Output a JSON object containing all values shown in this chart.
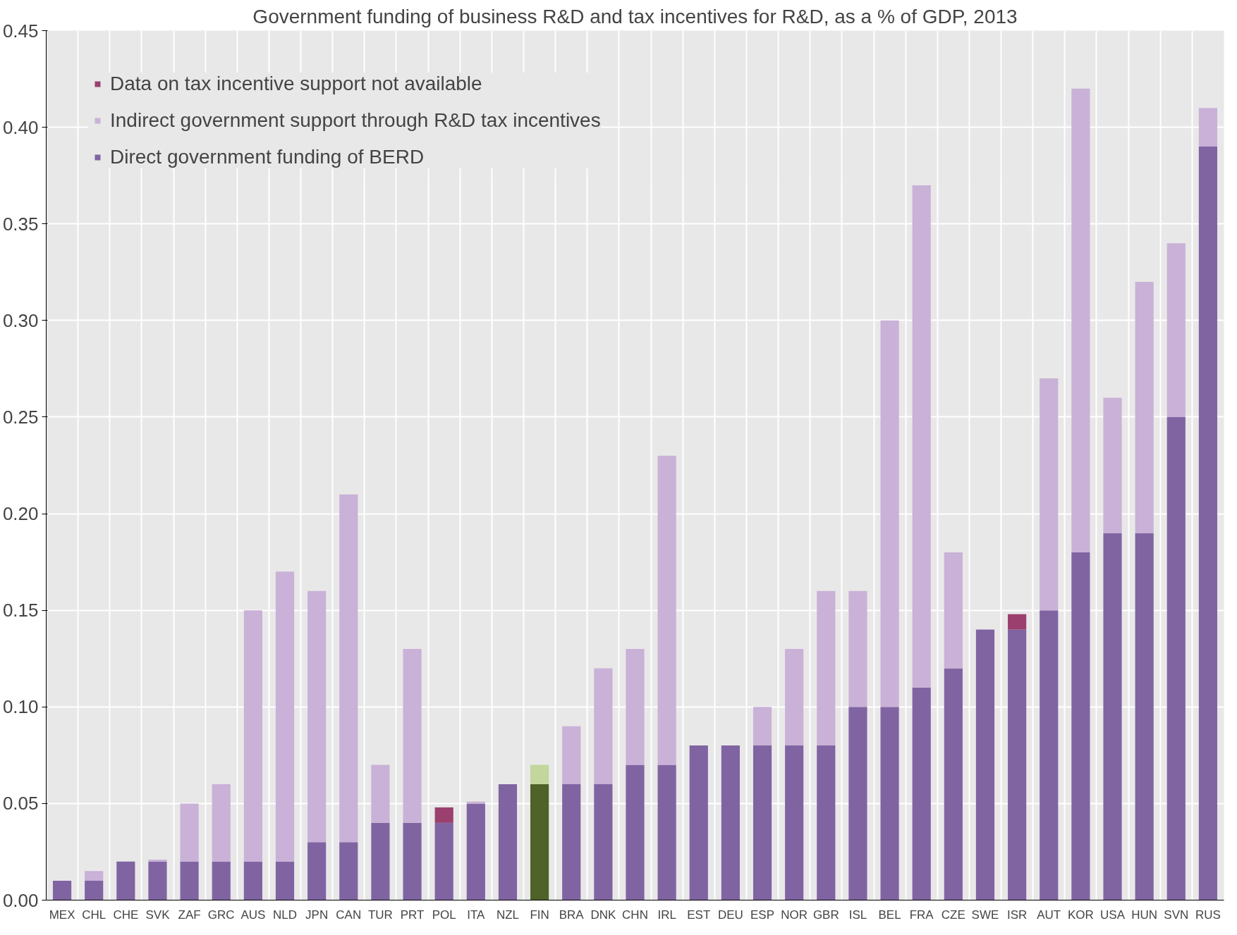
{
  "chart_data": {
    "type": "bar",
    "stacked": true,
    "title": "Government funding of business R&D and tax incentives for R&D, as a % of GDP, 2013",
    "categories": [
      "MEX",
      "CHL",
      "CHE",
      "SVK",
      "ZAF",
      "GRC",
      "AUS",
      "NLD",
      "JPN",
      "CAN",
      "TUR",
      "PRT",
      "POL",
      "ITA",
      "NZL",
      "FIN",
      "BRA",
      "DNK",
      "CHN",
      "IRL",
      "EST",
      "DEU",
      "ESP",
      "NOR",
      "GBR",
      "ISL",
      "BEL",
      "FRA",
      "CZE",
      "SWE",
      "ISR",
      "AUT",
      "KOR",
      "USA",
      "HUN",
      "SVN",
      "RUS"
    ],
    "series": [
      {
        "name": "Direct government funding of BERD",
        "color": "#8064a2",
        "colors": [
          "#8064a2",
          "#8064a2",
          "#8064a2",
          "#8064a2",
          "#8064a2",
          "#8064a2",
          "#8064a2",
          "#8064a2",
          "#8064a2",
          "#8064a2",
          "#8064a2",
          "#8064a2",
          "#8064a2",
          "#8064a2",
          "#8064a2",
          "#4f6228",
          "#8064a2",
          "#8064a2",
          "#8064a2",
          "#8064a2",
          "#8064a2",
          "#8064a2",
          "#8064a2",
          "#8064a2",
          "#8064a2",
          "#8064a2",
          "#8064a2",
          "#8064a2",
          "#8064a2",
          "#8064a2",
          "#8064a2",
          "#8064a2",
          "#8064a2",
          "#8064a2",
          "#8064a2",
          "#8064a2",
          "#8064a2"
        ],
        "values": [
          0.01,
          0.01,
          0.02,
          0.02,
          0.02,
          0.02,
          0.02,
          0.02,
          0.03,
          0.03,
          0.04,
          0.04,
          0.04,
          0.05,
          0.06,
          0.06,
          0.06,
          0.06,
          0.07,
          0.07,
          0.08,
          0.08,
          0.08,
          0.08,
          0.08,
          0.1,
          0.1,
          0.11,
          0.12,
          0.14,
          0.14,
          0.15,
          0.18,
          0.19,
          0.19,
          0.25,
          0.39
        ]
      },
      {
        "name": "Indirect government support through R&D tax incentives",
        "color": "#c9b1d7",
        "colors": [
          "#c9b1d7",
          "#c9b1d7",
          "#c9b1d7",
          "#c9b1d7",
          "#c9b1d7",
          "#c9b1d7",
          "#c9b1d7",
          "#c9b1d7",
          "#c9b1d7",
          "#c9b1d7",
          "#c9b1d7",
          "#c9b1d7",
          "#c9b1d7",
          "#c9b1d7",
          "#c9b1d7",
          "#c3d69b",
          "#c9b1d7",
          "#c9b1d7",
          "#c9b1d7",
          "#c9b1d7",
          "#c9b1d7",
          "#c9b1d7",
          "#c9b1d7",
          "#c9b1d7",
          "#c9b1d7",
          "#c9b1d7",
          "#c9b1d7",
          "#c9b1d7",
          "#c9b1d7",
          "#c9b1d7",
          "#c9b1d7",
          "#c9b1d7",
          "#c9b1d7",
          "#c9b1d7",
          "#c9b1d7",
          "#c9b1d7",
          "#c9b1d7"
        ],
        "values": [
          0,
          0.005,
          0,
          0.001,
          0.03,
          0.04,
          0.13,
          0.15,
          0.13,
          0.18,
          0.03,
          0.09,
          0,
          0.001,
          0,
          0.01,
          0.03,
          0.06,
          0.06,
          0.16,
          0,
          0,
          0.02,
          0.05,
          0.08,
          0.06,
          0.2,
          0.26,
          0.06,
          0,
          0,
          0.12,
          0.24,
          0.07,
          0.13,
          0.09,
          0.02
        ]
      },
      {
        "name": "Data on tax incentive support not available",
        "color": "#9b3f6e",
        "values": [
          null,
          null,
          null,
          null,
          null,
          null,
          null,
          null,
          null,
          null,
          null,
          null,
          0.008,
          null,
          null,
          null,
          null,
          null,
          null,
          null,
          null,
          null,
          null,
          null,
          null,
          null,
          null,
          null,
          null,
          null,
          0.008,
          null,
          null,
          null,
          null,
          null,
          null
        ]
      }
    ],
    "ylim": [
      0,
      0.45
    ],
    "yticks": [
      {
        "value": 0,
        "label": "0.00"
      },
      {
        "value": 0.05,
        "label": "0.05"
      },
      {
        "value": 0.1,
        "label": "0.10"
      },
      {
        "value": 0.15,
        "label": "0.15"
      },
      {
        "value": 0.2,
        "label": "0.20"
      },
      {
        "value": 0.25,
        "label": "0.25"
      },
      {
        "value": 0.3,
        "label": "0.30"
      },
      {
        "value": 0.35,
        "label": "0.35"
      },
      {
        "value": 0.4,
        "label": "0.40"
      },
      {
        "value": 0.45,
        "label": "0.45"
      }
    ],
    "grid": true,
    "legend": "top left"
  }
}
